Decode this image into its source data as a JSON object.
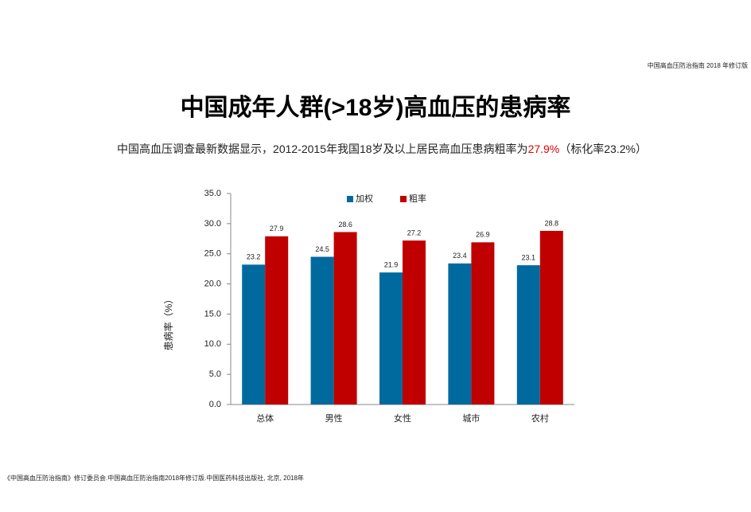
{
  "header_note": "中国高血压防治指南 2018 年修订版",
  "chart_data": {
    "type": "bar",
    "title": "中国成年人群(>18岁)高血压的患病率",
    "subtitle": [
      "中国高血压调查最新数据显示，2012-2015年我国18岁及以上居民高血压患病粗率为",
      "27.9%",
      "（标化率23.2%）"
    ],
    "y_label": "患病率（%）",
    "categories": [
      "总体",
      "男性",
      "女性",
      "城市",
      "农村"
    ],
    "series": [
      {
        "name": "加权",
        "color": "#006a9e",
        "values": [
          23.2,
          24.5,
          21.9,
          23.4,
          23.1
        ]
      },
      {
        "name": "粗率",
        "color": "#c00000",
        "values": [
          27.9,
          28.6,
          27.2,
          26.9,
          28.8
        ]
      }
    ],
    "ylim": [
      0,
      35
    ],
    "yticks": [
      {
        "value": 0,
        "label": "0.0"
      },
      {
        "value": 5,
        "label": "5.0"
      },
      {
        "value": 10,
        "label": "10.0"
      },
      {
        "value": 15,
        "label": "15.0"
      },
      {
        "value": 20,
        "label": "20.0"
      },
      {
        "value": 25,
        "label": "25.0"
      },
      {
        "value": 30,
        "label": "30.0"
      },
      {
        "value": 35,
        "label": "35.0"
      }
    ],
    "grid": false,
    "legend": "top"
  },
  "footer": "《中国高血压防治指南》修订委员会.中国高血压防治指南2018年修订版.中国医药科技出版社, 北京, 2018年"
}
